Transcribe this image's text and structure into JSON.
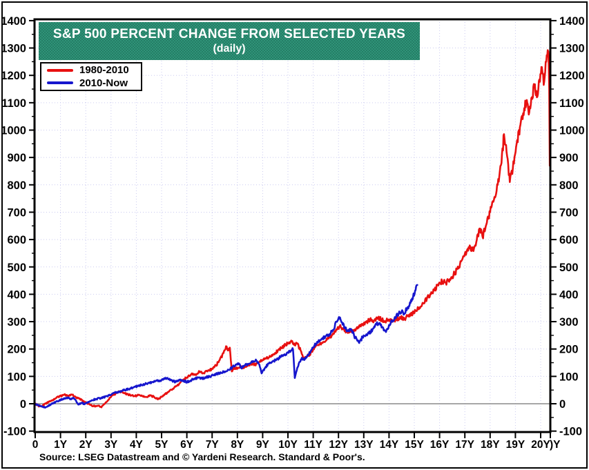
{
  "chart_data": {
    "type": "line",
    "title": "S&P 500 PERCENT CHANGE FROM SELECTED YEARS",
    "subtitle": "(daily)",
    "source": "Source: LSEG Datastream and © Yardeni Research. Standard & Poor's.",
    "legend_position": "top-left",
    "grid": true,
    "grid_color": "#c9c9ef",
    "zero_line_color": "#8a8a8a",
    "banner_color": "#2f9478",
    "axis_color": "#000000",
    "xlim": [
      0,
      20.38
    ],
    "ylim": [
      -100,
      1400
    ],
    "x_tick_labels": [
      "0",
      "1Y",
      "2Y",
      "3Y",
      "4Y",
      "5Y",
      "6Y",
      "7Y",
      "8Y",
      "9Y",
      "10Y",
      "11Y",
      "12Y",
      "13Y",
      "14Y",
      "15Y",
      "16Y",
      "17Y",
      "18Y",
      "19Y",
      "20Y"
    ],
    "x_axis_edge_label": ")Y",
    "y_ticks": [
      -100,
      0,
      100,
      200,
      300,
      400,
      500,
      600,
      700,
      800,
      900,
      1000,
      1100,
      1200,
      1300,
      1400
    ],
    "y_axis_sides": "both",
    "series": [
      {
        "name": "1980-2010",
        "color": "#e81010",
        "points": [
          [
            0,
            0
          ],
          [
            0.12,
            -7
          ],
          [
            0.25,
            -10
          ],
          [
            0.4,
            0
          ],
          [
            0.55,
            8
          ],
          [
            0.7,
            14
          ],
          [
            0.85,
            24
          ],
          [
            1,
            28
          ],
          [
            1.15,
            33
          ],
          [
            1.3,
            30
          ],
          [
            1.45,
            33
          ],
          [
            1.6,
            25
          ],
          [
            1.75,
            18
          ],
          [
            1.9,
            10
          ],
          [
            2.05,
            3
          ],
          [
            2.2,
            -5
          ],
          [
            2.35,
            -9
          ],
          [
            2.5,
            -7
          ],
          [
            2.62,
            -13
          ],
          [
            2.75,
            0
          ],
          [
            2.9,
            15
          ],
          [
            3.05,
            30
          ],
          [
            3.2,
            38
          ],
          [
            3.35,
            45
          ],
          [
            3.5,
            40
          ],
          [
            3.65,
            35
          ],
          [
            3.8,
            30
          ],
          [
            3.95,
            28
          ],
          [
            4.1,
            33
          ],
          [
            4.25,
            28
          ],
          [
            4.4,
            25
          ],
          [
            4.55,
            30
          ],
          [
            4.7,
            25
          ],
          [
            4.87,
            17
          ],
          [
            5,
            25
          ],
          [
            5.15,
            35
          ],
          [
            5.3,
            45
          ],
          [
            5.45,
            55
          ],
          [
            5.6,
            65
          ],
          [
            5.75,
            78
          ],
          [
            5.9,
            90
          ],
          [
            6.05,
            100
          ],
          [
            6.2,
            111
          ],
          [
            6.35,
            105
          ],
          [
            6.5,
            118
          ],
          [
            6.65,
            112
          ],
          [
            6.8,
            118
          ],
          [
            7,
            128
          ],
          [
            7.15,
            140
          ],
          [
            7.3,
            160
          ],
          [
            7.45,
            185
          ],
          [
            7.55,
            210
          ],
          [
            7.62,
            195
          ],
          [
            7.7,
            205
          ],
          [
            7.78,
            118
          ],
          [
            7.85,
            132
          ],
          [
            7.95,
            128
          ],
          [
            8.1,
            135
          ],
          [
            8.25,
            130
          ],
          [
            8.4,
            138
          ],
          [
            8.55,
            145
          ],
          [
            8.7,
            142
          ],
          [
            8.85,
            152
          ],
          [
            9,
            160
          ],
          [
            9.15,
            168
          ],
          [
            9.3,
            172
          ],
          [
            9.45,
            180
          ],
          [
            9.6,
            195
          ],
          [
            9.75,
            205
          ],
          [
            9.9,
            215
          ],
          [
            10.05,
            225
          ],
          [
            10.15,
            228
          ],
          [
            10.25,
            215
          ],
          [
            10.35,
            222
          ],
          [
            10.5,
            195
          ],
          [
            10.62,
            165
          ],
          [
            10.75,
            172
          ],
          [
            10.9,
            185
          ],
          [
            11.05,
            205
          ],
          [
            11.2,
            215
          ],
          [
            11.35,
            222
          ],
          [
            11.5,
            230
          ],
          [
            11.65,
            242
          ],
          [
            11.8,
            255
          ],
          [
            11.95,
            272
          ],
          [
            12.05,
            283
          ],
          [
            12.2,
            272
          ],
          [
            12.35,
            262
          ],
          [
            12.5,
            263
          ],
          [
            12.65,
            272
          ],
          [
            12.8,
            278
          ],
          [
            12.95,
            288
          ],
          [
            13.1,
            298
          ],
          [
            13.25,
            308
          ],
          [
            13.4,
            303
          ],
          [
            13.55,
            315
          ],
          [
            13.7,
            308
          ],
          [
            13.85,
            302
          ],
          [
            14,
            308
          ],
          [
            14.15,
            300
          ],
          [
            14.3,
            308
          ],
          [
            14.45,
            315
          ],
          [
            14.6,
            310
          ],
          [
            14.75,
            320
          ],
          [
            14.9,
            328
          ],
          [
            15.05,
            340
          ],
          [
            15.2,
            352
          ],
          [
            15.35,
            368
          ],
          [
            15.5,
            385
          ],
          [
            15.65,
            400
          ],
          [
            15.8,
            418
          ],
          [
            15.95,
            432
          ],
          [
            16.1,
            448
          ],
          [
            16.25,
            442
          ],
          [
            16.4,
            455
          ],
          [
            16.55,
            470
          ],
          [
            16.7,
            492
          ],
          [
            16.85,
            520
          ],
          [
            17,
            548
          ],
          [
            17.15,
            572
          ],
          [
            17.3,
            560
          ],
          [
            17.45,
            590
          ],
          [
            17.6,
            640
          ],
          [
            17.7,
            610
          ],
          [
            17.85,
            655
          ],
          [
            18,
            700
          ],
          [
            18.15,
            745
          ],
          [
            18.3,
            800
          ],
          [
            18.45,
            880
          ],
          [
            18.55,
            985
          ],
          [
            18.65,
            920
          ],
          [
            18.78,
            810
          ],
          [
            18.9,
            860
          ],
          [
            19.05,
            950
          ],
          [
            19.2,
            1020
          ],
          [
            19.35,
            1080
          ],
          [
            19.45,
            1110
          ],
          [
            19.55,
            1065
          ],
          [
            19.65,
            1120
          ],
          [
            19.75,
            1155
          ],
          [
            19.85,
            1120
          ],
          [
            19.95,
            1185
          ],
          [
            20.05,
            1230
          ],
          [
            20.12,
            1165
          ],
          [
            20.2,
            1250
          ],
          [
            20.28,
            1292
          ],
          [
            20.32,
            1240
          ],
          [
            20.34,
            1150
          ],
          [
            20.36,
            870
          ],
          [
            20.38,
            935
          ]
        ]
      },
      {
        "name": "2010-Now",
        "color": "#1616cd",
        "points": [
          [
            0,
            0
          ],
          [
            0.12,
            -6
          ],
          [
            0.25,
            -10
          ],
          [
            0.38,
            -14
          ],
          [
            0.5,
            -8
          ],
          [
            0.65,
            0
          ],
          [
            0.8,
            6
          ],
          [
            0.95,
            12
          ],
          [
            1.1,
            18
          ],
          [
            1.25,
            23
          ],
          [
            1.4,
            18
          ],
          [
            1.5,
            22
          ],
          [
            1.62,
            10
          ],
          [
            1.72,
            -3
          ],
          [
            1.85,
            4
          ],
          [
            1.95,
            -2
          ],
          [
            2.1,
            7
          ],
          [
            2.25,
            13
          ],
          [
            2.4,
            17
          ],
          [
            2.55,
            20
          ],
          [
            2.7,
            23
          ],
          [
            2.85,
            27
          ],
          [
            3,
            33
          ],
          [
            3.15,
            40
          ],
          [
            3.3,
            44
          ],
          [
            3.45,
            48
          ],
          [
            3.6,
            52
          ],
          [
            3.75,
            56
          ],
          [
            3.9,
            60
          ],
          [
            4.05,
            64
          ],
          [
            4.2,
            68
          ],
          [
            4.35,
            72
          ],
          [
            4.5,
            76
          ],
          [
            4.65,
            80
          ],
          [
            4.8,
            84
          ],
          [
            4.95,
            85
          ],
          [
            5.1,
            90
          ],
          [
            5.25,
            92
          ],
          [
            5.4,
            85
          ],
          [
            5.55,
            80
          ],
          [
            5.7,
            88
          ],
          [
            5.85,
            84
          ],
          [
            6,
            80
          ],
          [
            6.15,
            85
          ],
          [
            6.3,
            92
          ],
          [
            6.45,
            95
          ],
          [
            6.6,
            92
          ],
          [
            6.75,
            96
          ],
          [
            6.9,
            100
          ],
          [
            7.05,
            104
          ],
          [
            7.2,
            110
          ],
          [
            7.35,
            113
          ],
          [
            7.5,
            118
          ],
          [
            7.65,
            124
          ],
          [
            7.8,
            133
          ],
          [
            7.95,
            143
          ],
          [
            8.05,
            148
          ],
          [
            8.15,
            131
          ],
          [
            8.3,
            140
          ],
          [
            8.45,
            146
          ],
          [
            8.6,
            152
          ],
          [
            8.75,
            158
          ],
          [
            8.87,
            143
          ],
          [
            8.96,
            111
          ],
          [
            9.1,
            132
          ],
          [
            9.25,
            147
          ],
          [
            9.4,
            155
          ],
          [
            9.55,
            162
          ],
          [
            9.7,
            170
          ],
          [
            9.85,
            178
          ],
          [
            10,
            188
          ],
          [
            10.12,
            195
          ],
          [
            10.2,
            199
          ],
          [
            10.27,
            94
          ],
          [
            10.35,
            122
          ],
          [
            10.45,
            152
          ],
          [
            10.55,
            168
          ],
          [
            10.65,
            160
          ],
          [
            10.78,
            178
          ],
          [
            10.9,
            192
          ],
          [
            11.05,
            212
          ],
          [
            11.2,
            226
          ],
          [
            11.35,
            238
          ],
          [
            11.5,
            247
          ],
          [
            11.65,
            255
          ],
          [
            11.8,
            270
          ],
          [
            11.92,
            300
          ],
          [
            12.02,
            317
          ],
          [
            12.12,
            298
          ],
          [
            12.25,
            280
          ],
          [
            12.38,
            265
          ],
          [
            12.5,
            273
          ],
          [
            12.62,
            248
          ],
          [
            12.75,
            230
          ],
          [
            12.82,
            222
          ],
          [
            12.95,
            243
          ],
          [
            13.08,
            250
          ],
          [
            13.2,
            258
          ],
          [
            13.35,
            272
          ],
          [
            13.5,
            290
          ],
          [
            13.62,
            295
          ],
          [
            13.75,
            280
          ],
          [
            13.88,
            262
          ],
          [
            14,
            288
          ],
          [
            14.12,
            303
          ],
          [
            14.25,
            315
          ],
          [
            14.38,
            328
          ],
          [
            14.5,
            338
          ],
          [
            14.6,
            330
          ],
          [
            14.72,
            350
          ],
          [
            14.85,
            368
          ],
          [
            14.95,
            390
          ],
          [
            15.05,
            415
          ],
          [
            15.12,
            434
          ]
        ]
      }
    ]
  }
}
